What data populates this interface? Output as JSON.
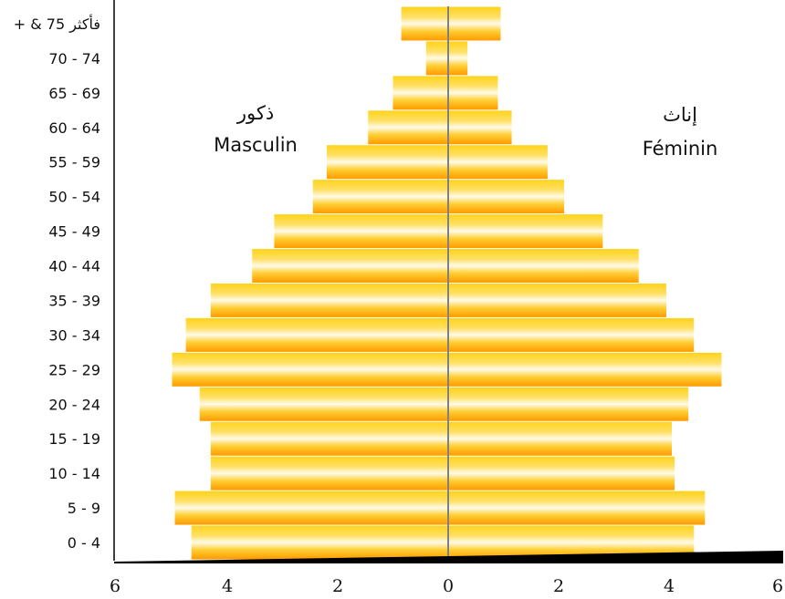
{
  "chart_data": {
    "type": "bar",
    "orientation": "horizontal",
    "layout": "population-pyramid",
    "categories": [
      "0 - 4",
      "5 - 9",
      "10 - 14",
      "15 - 19",
      "20 - 24",
      "25 - 29",
      "30 - 34",
      "35 - 39",
      "40 - 44",
      "45 - 49",
      "50 - 54",
      "55 - 59",
      "60 - 64",
      "65 - 69",
      "70 - 74",
      "+ & 75 فأكثر"
    ],
    "series": [
      {
        "name": "Masculin",
        "name_ar": "ذكور",
        "side": "left",
        "values": [
          4.65,
          4.95,
          4.3,
          4.3,
          4.5,
          5.0,
          4.75,
          4.3,
          3.55,
          3.15,
          2.45,
          2.2,
          1.45,
          1.0,
          0.4,
          0.85
        ]
      },
      {
        "name": "Féminin",
        "name_ar": "إناث",
        "side": "right",
        "values": [
          4.45,
          4.65,
          4.1,
          4.05,
          4.35,
          4.95,
          4.45,
          3.95,
          3.45,
          2.8,
          2.1,
          1.8,
          1.15,
          0.9,
          0.35,
          0.95
        ]
      }
    ],
    "x_ticks": [
      "6",
      "4",
      "2",
      "0",
      "2",
      "4",
      "6"
    ],
    "xlim": [
      -6,
      6
    ],
    "grid": false,
    "legend": "none",
    "colors": {
      "bar_edge": "#ff9a00",
      "bar_mid": "#ffd31a",
      "bar_center": "#fffbe8",
      "center_line": "#808080",
      "axis": "#000000"
    }
  }
}
